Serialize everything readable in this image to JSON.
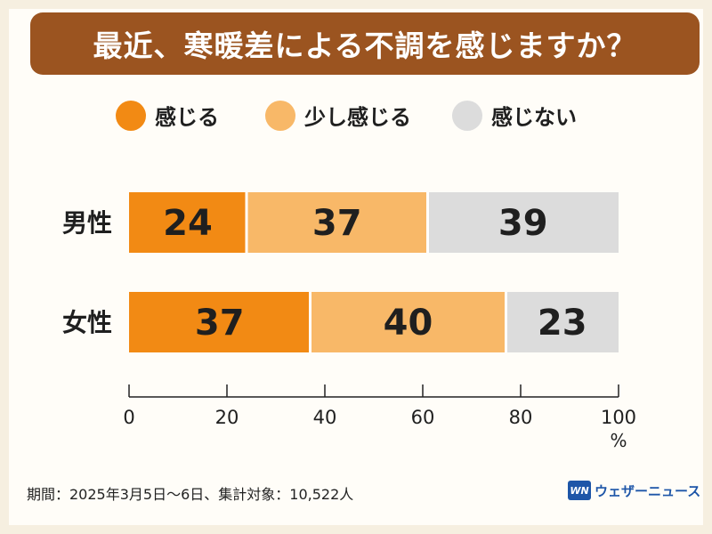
{
  "title": "最近、寒暖差による不調を感じますか？",
  "colors": {
    "strong": "#f28a14",
    "light": "#f8b868",
    "none": "#dcdcdc",
    "header": "#9b5420"
  },
  "chart_data": {
    "type": "bar",
    "orientation": "horizontal",
    "stacked": true,
    "categories": [
      "男性",
      "女性"
    ],
    "series": [
      {
        "name": "感じる",
        "values": [
          24,
          37
        ]
      },
      {
        "name": "少し感じる",
        "values": [
          37,
          40
        ]
      },
      {
        "name": "感じない",
        "values": [
          39,
          23
        ]
      }
    ],
    "xlim": [
      0,
      100
    ],
    "xticks": [
      "0",
      "20",
      "40",
      "60",
      "80",
      "100"
    ],
    "xunit": "%"
  },
  "footer": {
    "note": "期間：2025年3月5日〜6日、集計対象：10,522人",
    "brand_logo": "WN",
    "brand": "ウェザーニュース"
  }
}
